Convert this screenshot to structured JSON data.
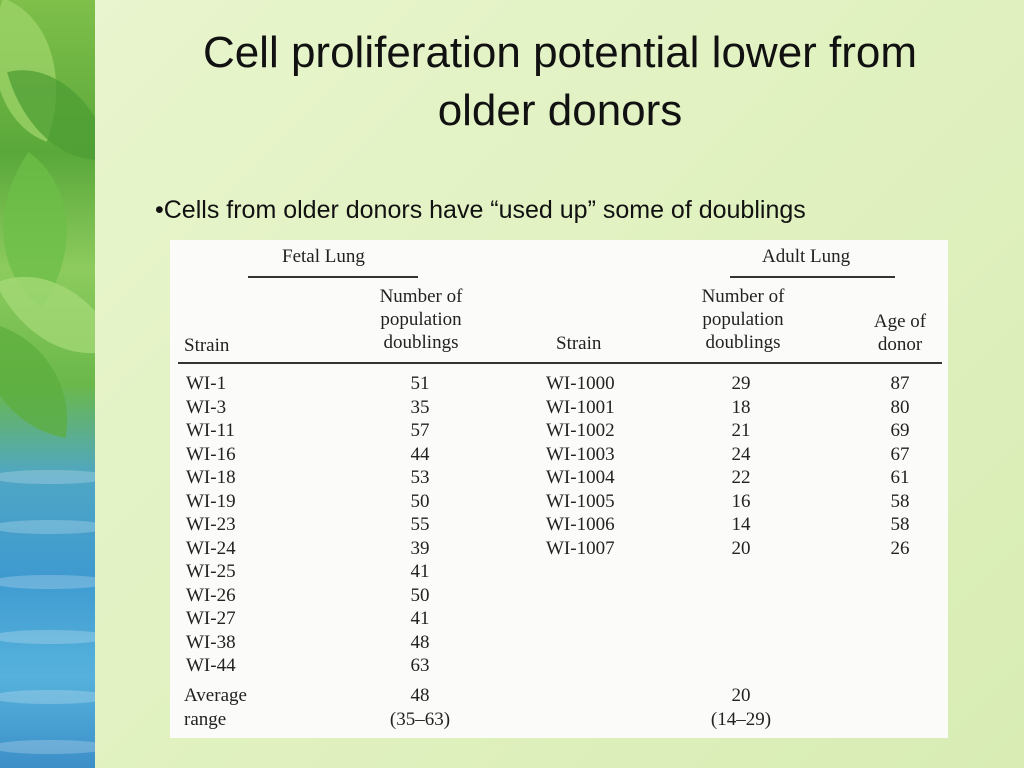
{
  "slide": {
    "title_line1": "Cell proliferation potential lower from",
    "title_line2": "older donors",
    "bullet": "•Cells from older donors have “used up” some of doublings"
  },
  "table": {
    "fetal_group": "Fetal Lung",
    "adult_group": "Adult Lung",
    "headers": {
      "strain": "Strain",
      "doublings": [
        "Number of",
        "population",
        "doublings"
      ],
      "age": [
        "Age of",
        "donor"
      ]
    },
    "fetal_rows": [
      {
        "strain": "WI-1",
        "doublings": "51"
      },
      {
        "strain": "WI-3",
        "doublings": "35"
      },
      {
        "strain": "WI-11",
        "doublings": "57"
      },
      {
        "strain": "WI-16",
        "doublings": "44"
      },
      {
        "strain": "WI-18",
        "doublings": "53"
      },
      {
        "strain": "WI-19",
        "doublings": "50"
      },
      {
        "strain": "WI-23",
        "doublings": "55"
      },
      {
        "strain": "WI-24",
        "doublings": "39"
      },
      {
        "strain": "WI-25",
        "doublings": "41"
      },
      {
        "strain": "WI-26",
        "doublings": "50"
      },
      {
        "strain": "WI-27",
        "doublings": "41"
      },
      {
        "strain": "WI-38",
        "doublings": "48"
      },
      {
        "strain": "WI-44",
        "doublings": "63"
      }
    ],
    "adult_rows": [
      {
        "strain": "WI-1000",
        "doublings": "29",
        "age": "87"
      },
      {
        "strain": "WI-1001",
        "doublings": "18",
        "age": "80"
      },
      {
        "strain": "WI-1002",
        "doublings": "21",
        "age": "69"
      },
      {
        "strain": "WI-1003",
        "doublings": "24",
        "age": "67"
      },
      {
        "strain": "WI-1004",
        "doublings": "22",
        "age": "61"
      },
      {
        "strain": "WI-1005",
        "doublings": "16",
        "age": "58"
      },
      {
        "strain": "WI-1006",
        "doublings": "14",
        "age": "58"
      },
      {
        "strain": "WI-1007",
        "doublings": "20",
        "age": "26"
      }
    ],
    "summary": {
      "average_label": "Average",
      "range_label": "range",
      "fetal_average": "48",
      "fetal_range": "(35–63)",
      "adult_average": "20",
      "adult_range": "(14–29)"
    }
  }
}
